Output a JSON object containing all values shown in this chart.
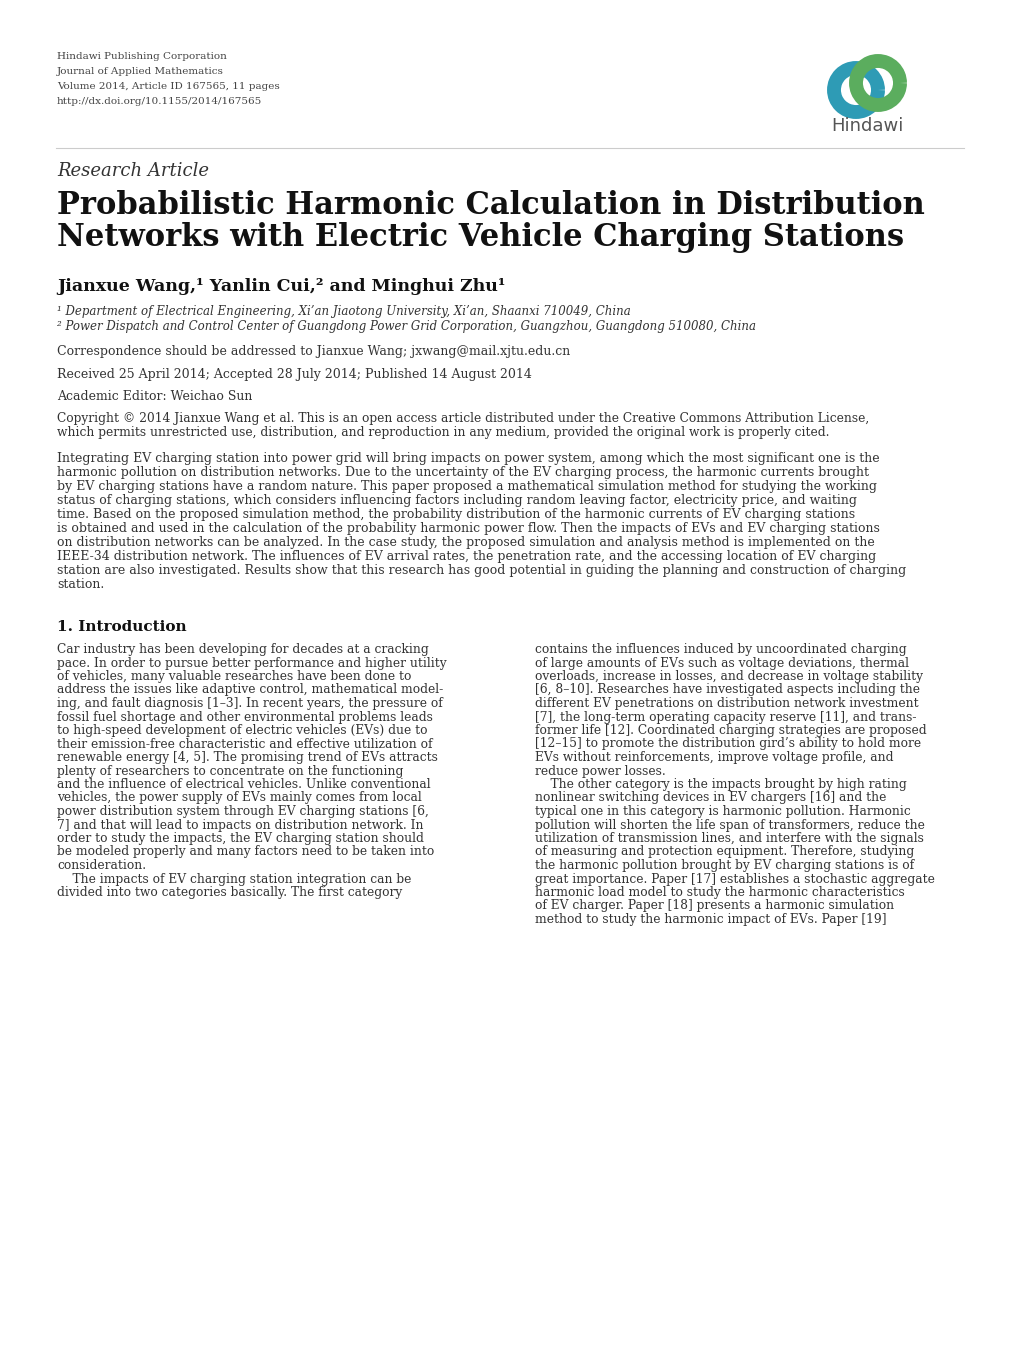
{
  "bg_color": "#ffffff",
  "header_lines": [
    "Hindawi Publishing Corporation",
    "Journal of Applied Mathematics",
    "Volume 2014, Article ID 167565, 11 pages",
    "http://dx.doi.org/10.1155/2014/167565"
  ],
  "research_article": "Research Article",
  "title_line1": "Probabilistic Harmonic Calculation in Distribution",
  "title_line2": "Networks with Electric Vehicle Charging Stations",
  "authors": "Jianxue Wang,¹ Yanlin Cui,² and Minghui Zhu¹",
  "affil1": "¹ Department of Electrical Engineering, Xi’an Jiaotong University, Xi’an, Shaanxi 710049, China",
  "affil2": "² Power Dispatch and Control Center of Guangdong Power Grid Corporation, Guangzhou, Guangdong 510080, China",
  "correspondence": "Correspondence should be addressed to Jianxue Wang; jxwang@mail.xjtu.edu.cn",
  "received": "Received 25 April 2014; Accepted 28 July 2014; Published 14 August 2014",
  "editor": "Academic Editor: Weichao Sun",
  "copyright": "Copyright © 2014 Jianxue Wang et al. This is an open access article distributed under the Creative Commons Attribution License,\nwhich permits unrestricted use, distribution, and reproduction in any medium, provided the original work is properly cited.",
  "abstract": "Integrating EV charging station into power grid will bring impacts on power system, among which the most significant one is the\nharmonic pollution on distribution networks. Due to the uncertainty of the EV charging process, the harmonic currents brought\nby EV charging stations have a random nature. This paper proposed a mathematical simulation method for studying the working\nstatus of charging stations, which considers influencing factors including random leaving factor, electricity price, and waiting\ntime. Based on the proposed simulation method, the probability distribution of the harmonic currents of EV charging stations\nis obtained and used in the calculation of the probability harmonic power flow. Then the impacts of EVs and EV charging stations\non distribution networks can be analyzed. In the case study, the proposed simulation and analysis method is implemented on the\nIEEE-34 distribution network. The influences of EV arrival rates, the penetration rate, and the accessing location of EV charging\nstation are also investigated. Results show that this research has good potential in guiding the planning and construction of charging\nstation.",
  "section1_title": "1. Introduction",
  "intro_col1": "Car industry has been developing for decades at a cracking\npace. In order to pursue better performance and higher utility\nof vehicles, many valuable researches have been done to\naddress the issues like adaptive control, mathematical model-\ning, and fault diagnosis [1–3]. In recent years, the pressure of\nfossil fuel shortage and other environmental problems leads\nto high-speed development of electric vehicles (EVs) due to\ntheir emission-free characteristic and effective utilization of\nrenewable energy [4, 5]. The promising trend of EVs attracts\nplenty of researchers to concentrate on the functioning\nand the influence of electrical vehicles. Unlike conventional\nvehicles, the power supply of EVs mainly comes from local\npower distribution system through EV charging stations [6,\n7] and that will lead to impacts on distribution network. In\norder to study the impacts, the EV charging station should\nbe modeled properly and many factors need to be taken into\nconsideration.\n    The impacts of EV charging station integration can be\ndivided into two categories basically. The first category",
  "intro_col2": "contains the influences induced by uncoordinated charging\nof large amounts of EVs such as voltage deviations, thermal\noverloads, increase in losses, and decrease in voltage stability\n[6, 8–10]. Researches have investigated aspects including the\ndifferent EV penetrations on distribution network investment\n[7], the long-term operating capacity reserve [11], and trans-\nformer life [12]. Coordinated charging strategies are proposed\n[12–15] to promote the distribution gird’s ability to hold more\nEVs without reinforcements, improve voltage profile, and\nreduce power losses.\n    The other category is the impacts brought by high rating\nnonlinear switching devices in EV chargers [16] and the\ntypical one in this category is harmonic pollution. Harmonic\npollution will shorten the life span of transformers, reduce the\nutilization of transmission lines, and interfere with the signals\nof measuring and protection equipment. Therefore, studying\nthe harmonic pollution brought by EV charging stations is of\ngreat importance. Paper [17] establishes a stochastic aggregate\nharmonic load model to study the harmonic characteristics\nof EV charger. Paper [18] presents a harmonic simulation\nmethod to study the harmonic impact of EVs. Paper [19]"
}
